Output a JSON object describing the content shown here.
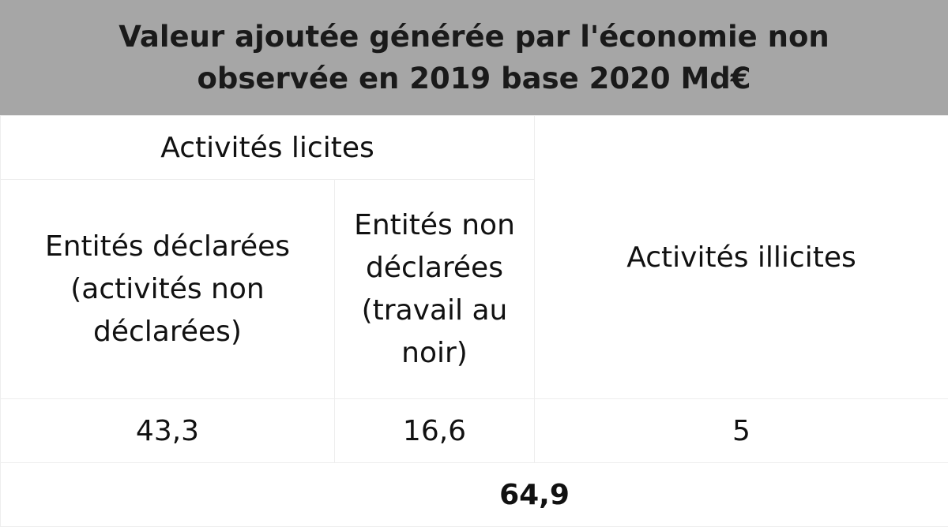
{
  "chart_data": {
    "type": "table",
    "title": "Valeur ajoutée générée par l'économie non observée en 2019 base 2020 Md€",
    "header_group": "Activités licites",
    "columns": [
      "Entités déclarées (activités non déclarées)",
      "Entités non déclarées (travail au noir)",
      "Activités illicites"
    ],
    "values": [
      "43,3",
      "16,6",
      "5"
    ],
    "total": "64,9",
    "colors": {
      "title_background": "#a6a6a6",
      "border": "#eeeeee"
    }
  }
}
